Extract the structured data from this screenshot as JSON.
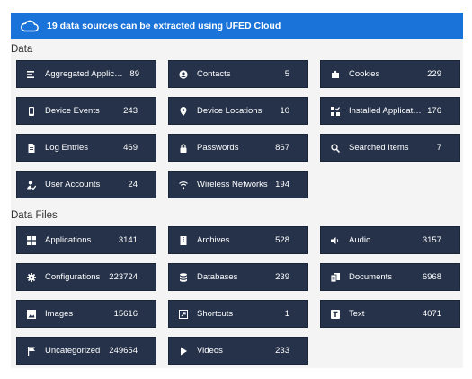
{
  "banner": {
    "text": "19 data sources can be extracted using UFED Cloud",
    "icon": "cloud-icon"
  },
  "sections": {
    "data": {
      "title": "Data",
      "tiles": [
        {
          "label": "Aggregated Applications",
          "count": "89",
          "icon": "list-icon"
        },
        {
          "label": "Contacts",
          "count": "5",
          "icon": "contact-icon"
        },
        {
          "label": "Cookies",
          "count": "229",
          "icon": "puzzle-icon"
        },
        {
          "label": "Device Events",
          "count": "243",
          "icon": "phone-icon"
        },
        {
          "label": "Device Locations",
          "count": "10",
          "icon": "location-pin-icon"
        },
        {
          "label": "Installed Applications",
          "count": "176",
          "icon": "apps-icon"
        },
        {
          "label": "Log Entries",
          "count": "469",
          "icon": "document-icon"
        },
        {
          "label": "Passwords",
          "count": "867",
          "icon": "lock-icon"
        },
        {
          "label": "Searched Items",
          "count": "7",
          "icon": "search-icon"
        },
        {
          "label": "User Accounts",
          "count": "24",
          "icon": "user-account-icon"
        },
        {
          "label": "Wireless Networks",
          "count": "194",
          "icon": "wifi-icon"
        }
      ]
    },
    "files": {
      "title": "Data Files",
      "tiles": [
        {
          "label": "Applications",
          "count": "3141",
          "icon": "grid-icon"
        },
        {
          "label": "Archives",
          "count": "528",
          "icon": "archive-icon"
        },
        {
          "label": "Audio",
          "count": "3157",
          "icon": "speaker-icon"
        },
        {
          "label": "Configurations",
          "count": "223724",
          "icon": "gear-icon"
        },
        {
          "label": "Databases",
          "count": "239",
          "icon": "database-icon"
        },
        {
          "label": "Documents",
          "count": "6968",
          "icon": "documents-icon"
        },
        {
          "label": "Images",
          "count": "15616",
          "icon": "image-icon"
        },
        {
          "label": "Shortcuts",
          "count": "1",
          "icon": "shortcut-icon"
        },
        {
          "label": "Text",
          "count": "4071",
          "icon": "text-icon"
        },
        {
          "label": "Uncategorized",
          "count": "249654",
          "icon": "flag-icon"
        },
        {
          "label": "Videos",
          "count": "233",
          "icon": "play-icon"
        }
      ]
    }
  },
  "colors": {
    "banner": "#1a73d9",
    "tile": "#25324a",
    "panel": "#f4f4f4"
  }
}
